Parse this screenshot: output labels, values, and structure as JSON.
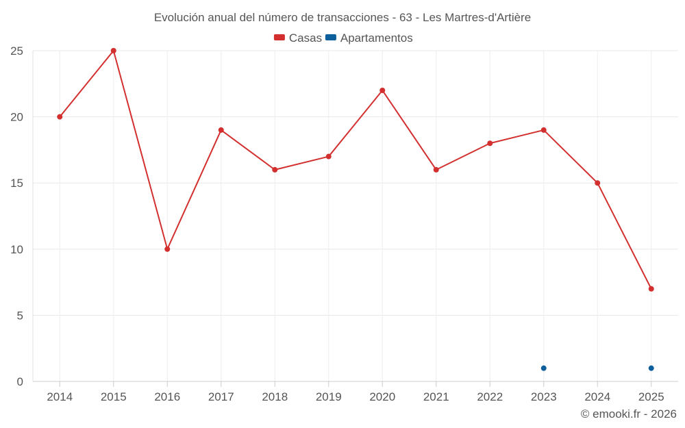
{
  "chart_data": {
    "type": "line",
    "title": "Evolución anual del número de transacciones - 63 - Les Martres-d'Artière",
    "xlabel": "",
    "ylabel": "",
    "categories": [
      "2014",
      "2015",
      "2016",
      "2017",
      "2018",
      "2019",
      "2020",
      "2021",
      "2022",
      "2023",
      "2024",
      "2025"
    ],
    "ylim": [
      0,
      25
    ],
    "yticks": [
      "0",
      "5",
      "10",
      "15",
      "20",
      "25"
    ],
    "grid": true,
    "legend_position": "top-center",
    "series": [
      {
        "name": "Casas",
        "color": "#d32f2f",
        "values": [
          20,
          25,
          10,
          19,
          16,
          17,
          22,
          16,
          18,
          19,
          15,
          7
        ]
      },
      {
        "name": "Apartamentos",
        "color": "#0d5f9c",
        "values": [
          null,
          null,
          null,
          null,
          null,
          null,
          null,
          null,
          null,
          1,
          null,
          1
        ]
      }
    ],
    "credit": "© emooki.fr - 2026"
  }
}
